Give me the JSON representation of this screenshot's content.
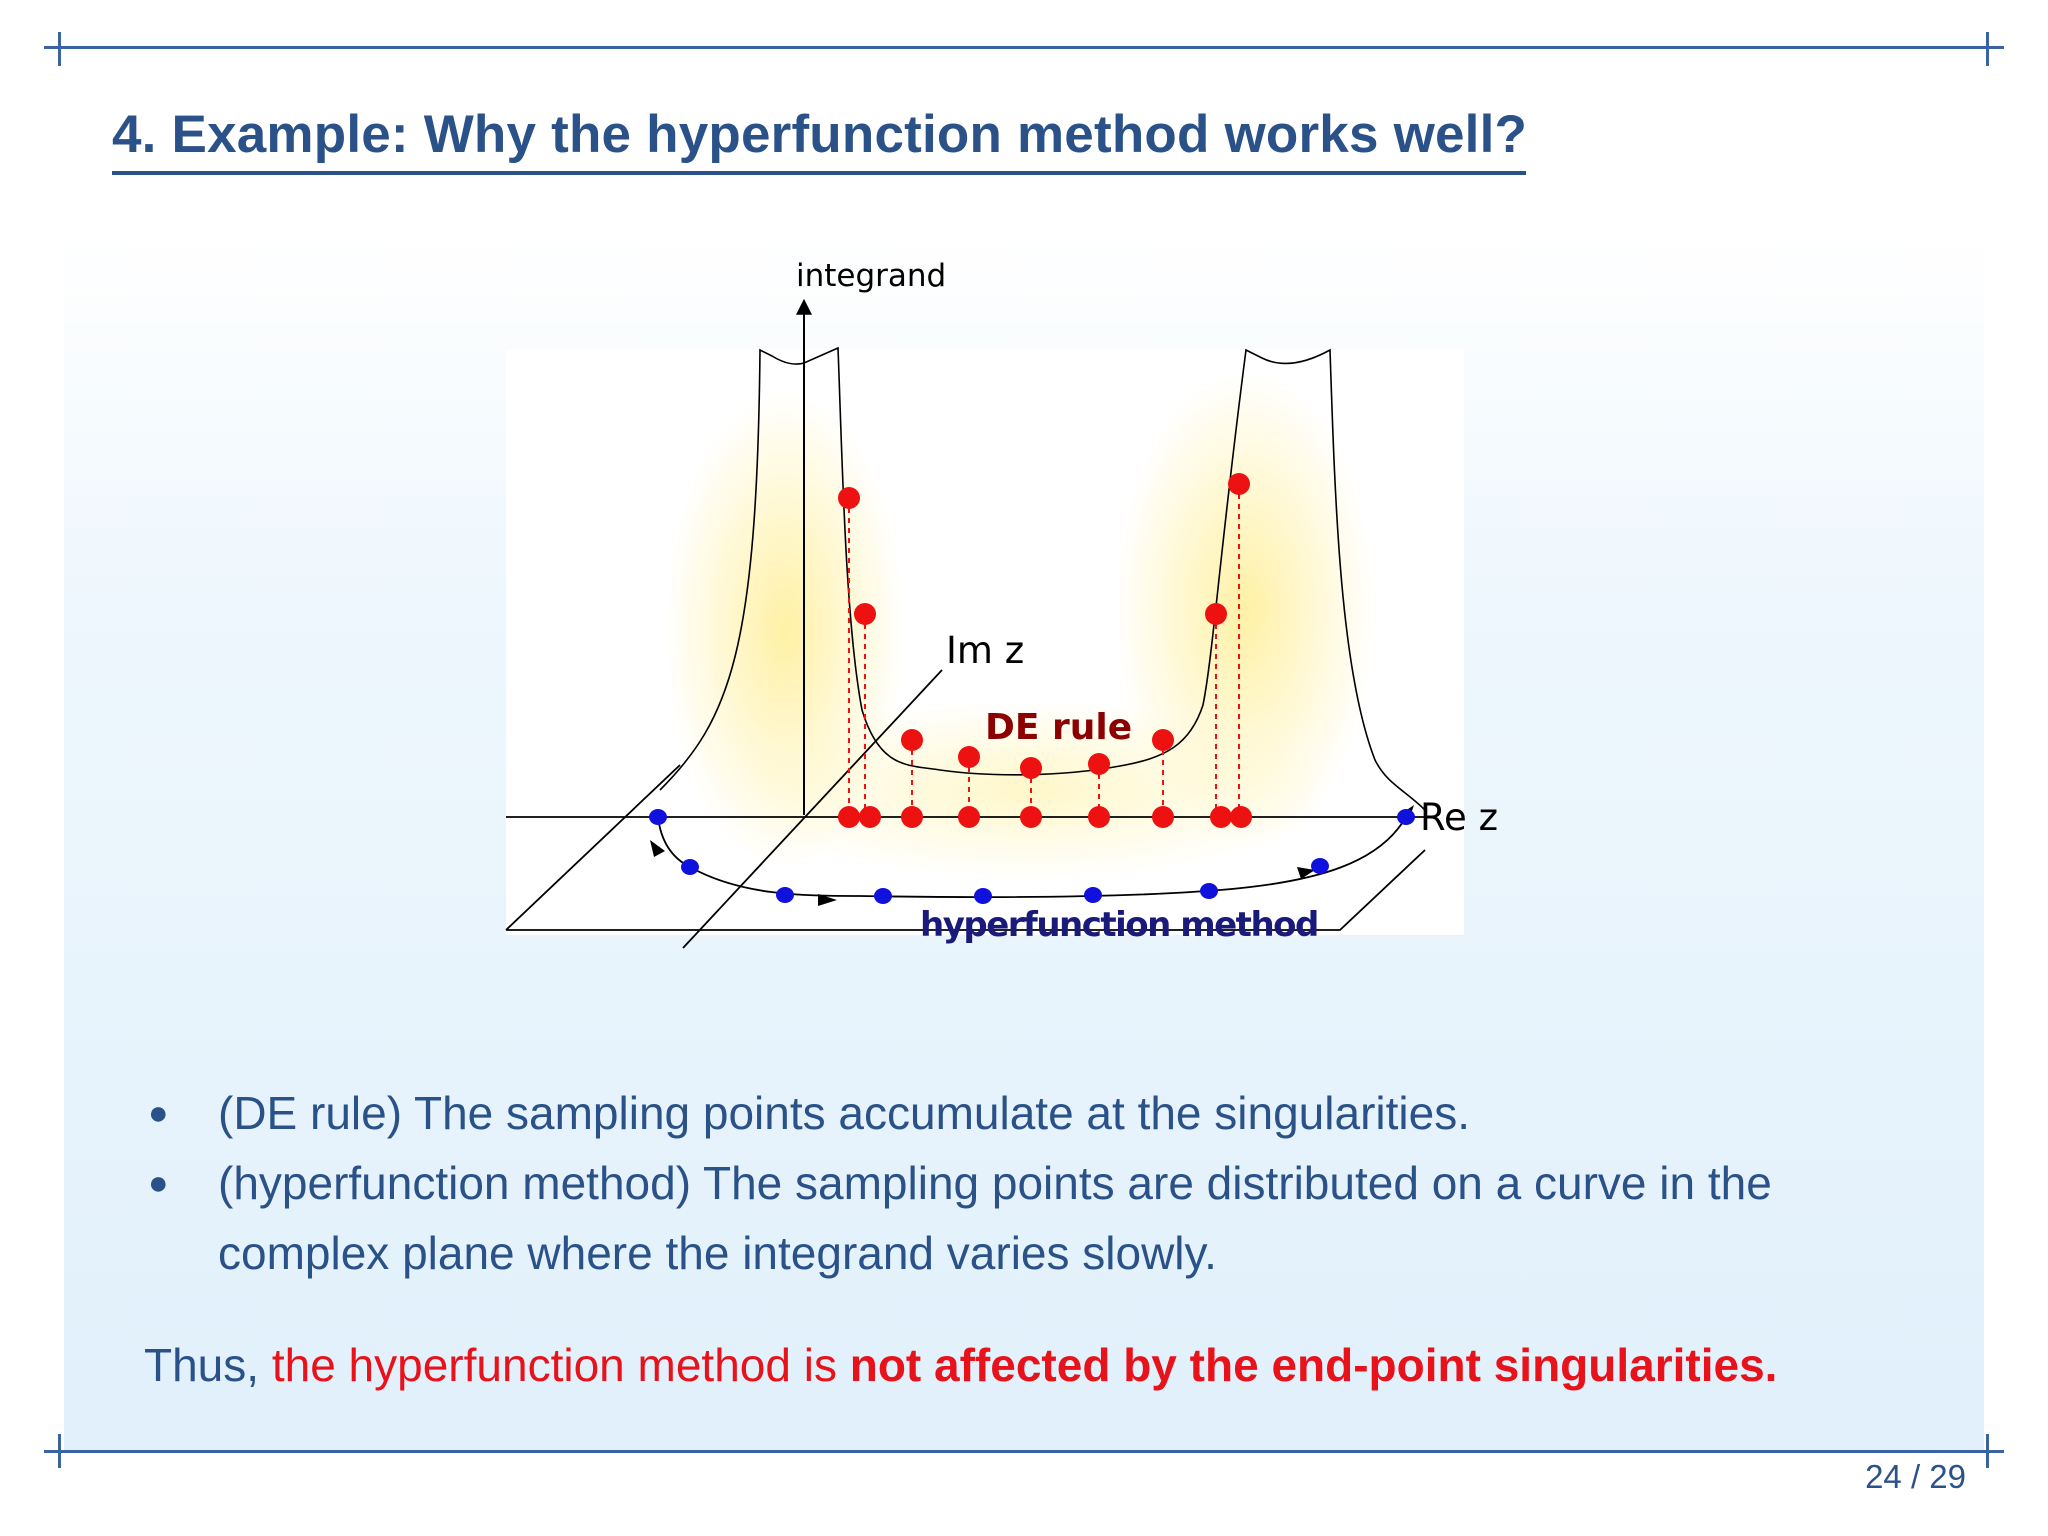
{
  "slide": {
    "title": "4. Example: Why the hyperfunction method works well?",
    "page_number": "24 / 29"
  },
  "figure": {
    "label_integrand": "integrand",
    "label_im_z": "Im z",
    "label_re_z": "Re z",
    "label_de_rule": "DE rule",
    "label_hyperfunction": "hyperfunction method",
    "colors": {
      "de_points": "#ee1111",
      "hyper_points": "#1111dd",
      "de_label": "#8b0000",
      "hyper_label": "#1a1a7a",
      "glow": "#fff2a0"
    }
  },
  "bullets": [
    {
      "text": "(DE rule) The sampling points accumulate at the singularities."
    },
    {
      "text": "(hyperfunction method) The sampling points are distributed on a curve in the complex plane where the integrand varies slowly."
    }
  ],
  "conclusion": {
    "prefix": "Thus, ",
    "red_text": "the hyperfunction method is ",
    "bold_red_text": "not affected by the end-point singularities."
  }
}
